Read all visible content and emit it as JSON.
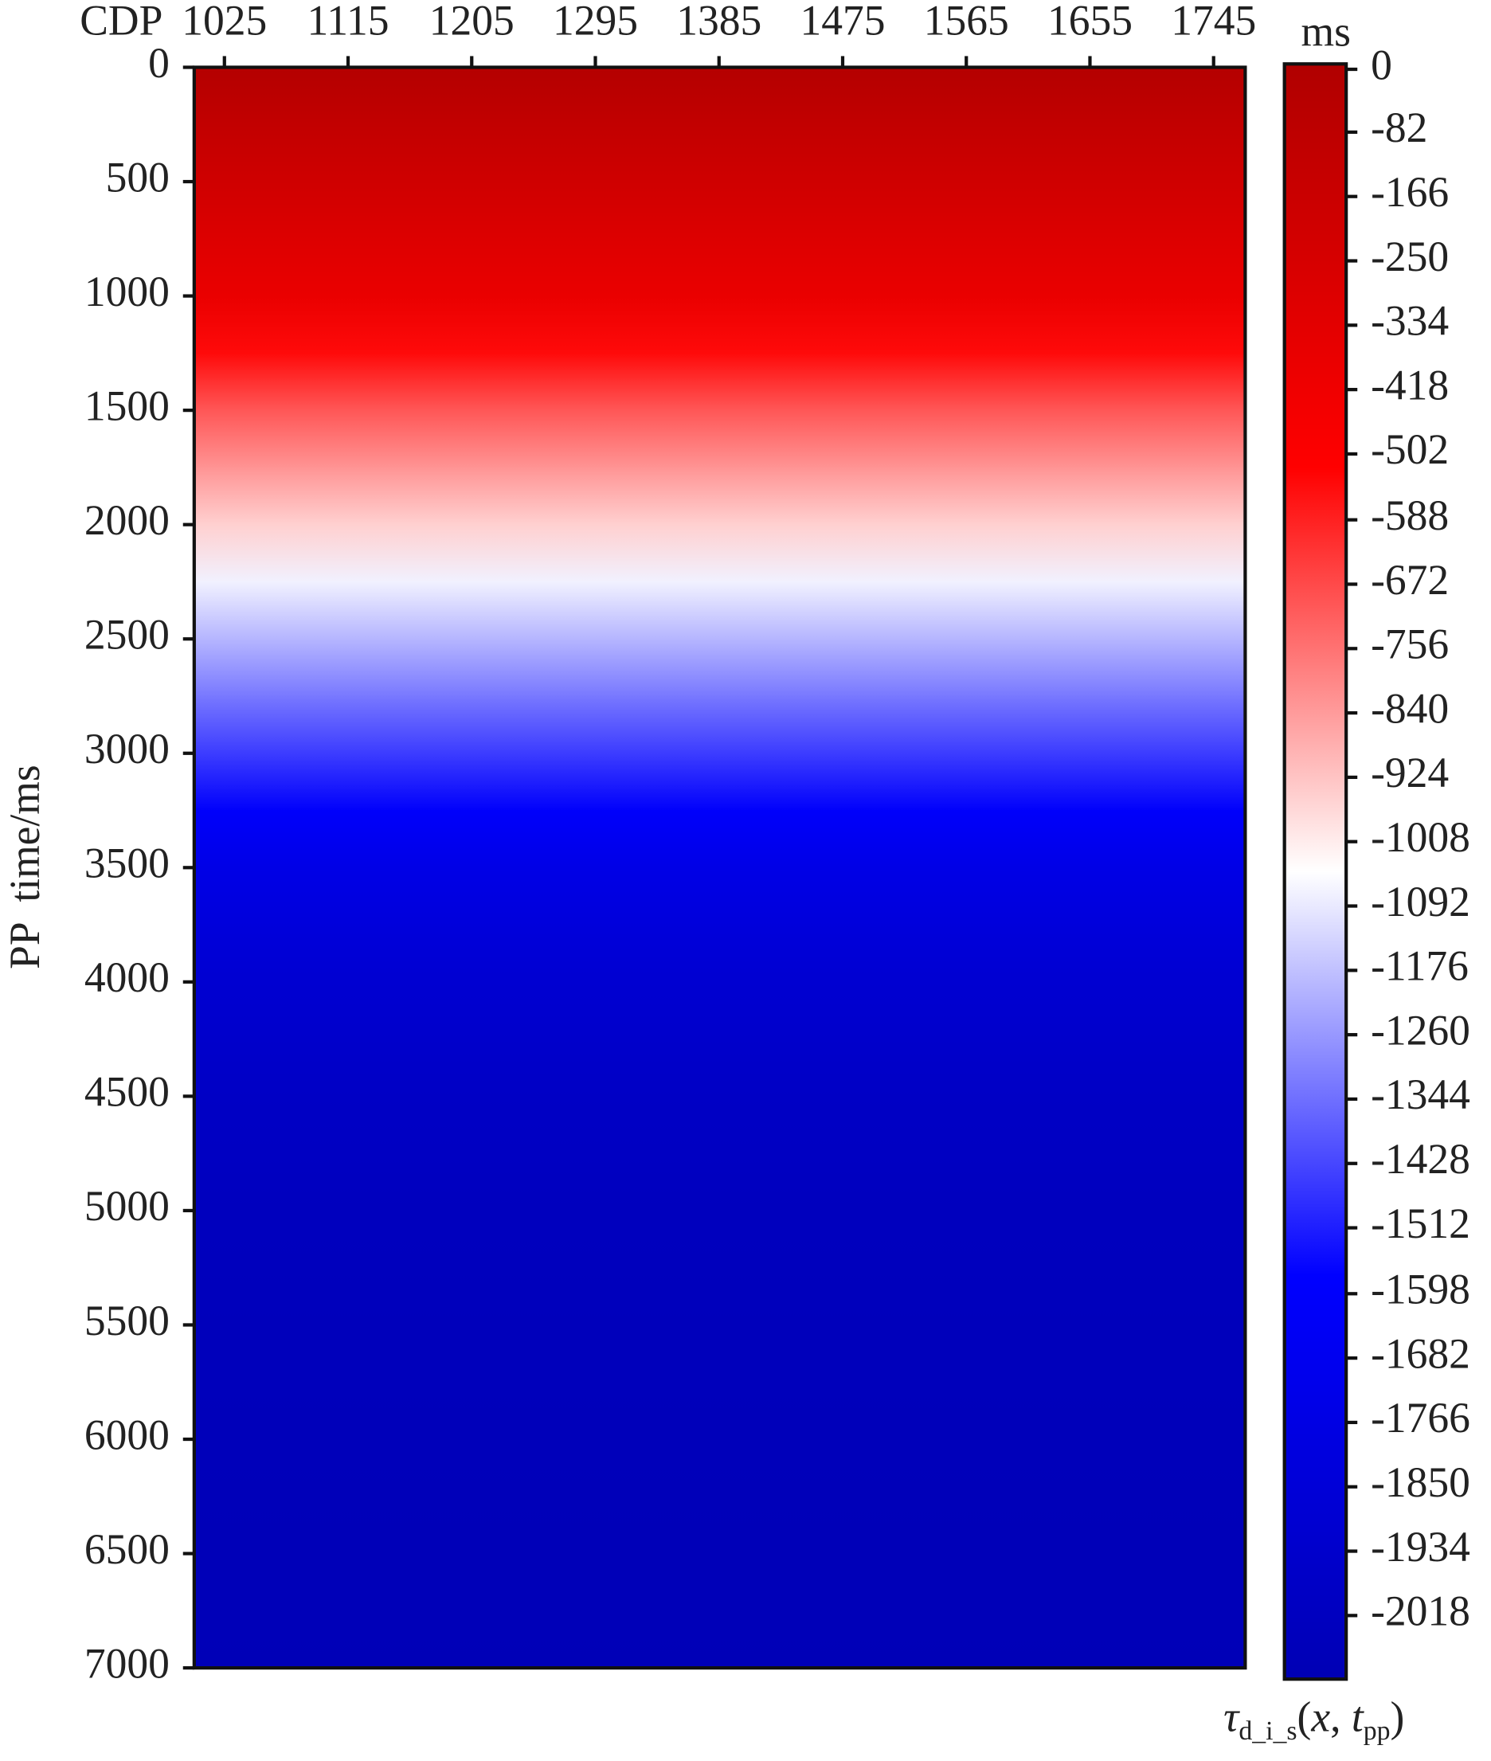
{
  "chart_data": {
    "type": "heatmap",
    "x_label": "CDP",
    "y_label": "PP  time/ms",
    "colorbar_title": "ms",
    "colorbar_label": [
      "τ",
      "d_i_s",
      "(",
      "x",
      ", ",
      "t",
      "pp",
      ")"
    ],
    "xlim": [
      1003,
      1768
    ],
    "xticks": [
      1025,
      1115,
      1205,
      1295,
      1385,
      1475,
      1565,
      1655,
      1745
    ],
    "ylim": [
      0,
      7000
    ],
    "yticks": [
      0,
      500,
      1000,
      1500,
      2000,
      2500,
      3000,
      3500,
      4000,
      4500,
      5000,
      5500,
      6000,
      6500,
      7000
    ],
    "y": [
      0,
      500,
      1000,
      1500,
      2000,
      2500,
      3000,
      3500,
      4000,
      4500,
      5000,
      5500,
      6000,
      6500,
      7000
    ],
    "values": [
      -20,
      -200,
      -380,
      -700,
      -950,
      -1200,
      -1450,
      -1750,
      -1900,
      -1980,
      -2030,
      -2050,
      -2060,
      -2070,
      -2080
    ],
    "clim": [
      -2101,
      7
    ],
    "colormap": [
      "#0000b4",
      "#0000ff",
      "#ffffff",
      "#ff0000",
      "#b00000"
    ],
    "cticks": [
      0,
      -82,
      -166,
      -250,
      -334,
      -418,
      -502,
      -588,
      -672,
      -756,
      -840,
      -924,
      -1008,
      -1092,
      -1176,
      -1260,
      -1344,
      -1428,
      -1512,
      -1598,
      -1682,
      -1766,
      -1850,
      -1934,
      -2018
    ]
  }
}
